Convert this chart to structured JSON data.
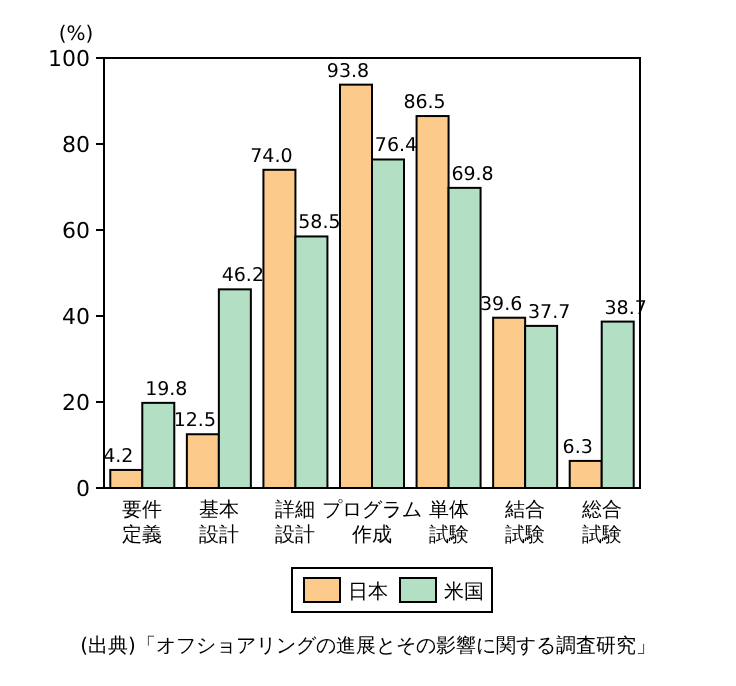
{
  "chart_data": {
    "type": "bar",
    "ylabel": "(%)",
    "categories": [
      "要件定義",
      "基本設計",
      "詳細設計",
      "プログラム作成",
      "単体試験",
      "結合試験",
      "総合試験"
    ],
    "series": [
      {
        "name": "日本",
        "color": "#fccb8c",
        "values": [
          4.2,
          12.5,
          74.0,
          93.8,
          86.5,
          39.6,
          6.3
        ],
        "value_labels": [
          "4.2",
          "12.5",
          "74.0",
          "93.8",
          "86.5",
          "39.6",
          "6.3"
        ]
      },
      {
        "name": "米国",
        "color": "#b3dfc5",
        "values": [
          19.8,
          46.2,
          58.5,
          76.4,
          69.8,
          37.7,
          38.7
        ],
        "value_labels": [
          "19.8",
          "46.2",
          "58.5",
          "76.4",
          "69.8",
          "37.7",
          "38.7"
        ]
      }
    ],
    "ylim": [
      0,
      100
    ],
    "yticks": [
      0,
      20,
      40,
      60,
      80,
      100
    ],
    "legend": "bottom",
    "grid": false,
    "annotations": [
      "(出典)「オフショアリングの進展とその影響に関する調査研究」"
    ]
  }
}
